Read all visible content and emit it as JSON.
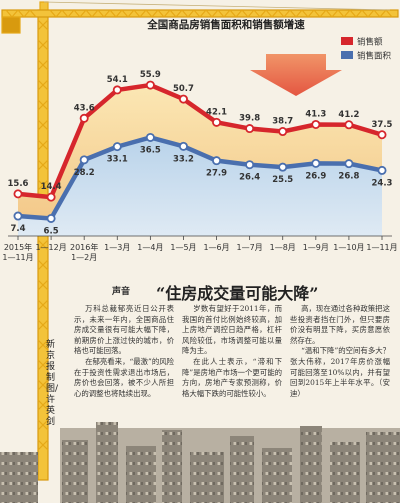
{
  "chart_data": {
    "type": "line",
    "title": "全国商品房销售面积和销售额增速",
    "categories": [
      "2015年 1—11月",
      "1—12月",
      "2016年 1—2月",
      "1—3月",
      "1—4月",
      "1—5月",
      "1—6月",
      "1—7月",
      "1—8月",
      "1—9月",
      "1—10月",
      "1—11月"
    ],
    "series": [
      {
        "name": "销售额",
        "color": "#d6262c",
        "values": [
          15.6,
          14.4,
          43.6,
          54.1,
          55.9,
          50.7,
          42.1,
          39.8,
          38.7,
          41.3,
          41.2,
          37.5
        ]
      },
      {
        "name": "销售面积",
        "color": "#4a6fae",
        "values": [
          7.4,
          6.5,
          28.2,
          33.1,
          36.5,
          33.2,
          27.9,
          26.4,
          25.5,
          26.9,
          26.8,
          24.3
        ]
      }
    ],
    "ylim": [
      0,
      60
    ],
    "grid": false,
    "legend_position": "top-right"
  },
  "article": {
    "tag": "声音",
    "headline": "“住房成交量可能大降”",
    "col1": [
      "万科总裁郁亮近日公开表示，未来一年内，全国商品住房成交量很有可能大幅下降，前期房价上涨过快的城市，价格也可能回落。",
      "在郁亮看来，“最激”的风险在于投资性需求退出市场后，房价也会回落，被不少人所担心的调整也将陆续出现。"
    ],
    "col2": [
      "岁数有望好于2011年，而我国的首付比例始终较高，加上房地产调控日趋严格，杠杆风险较低，市场调整可能以量降为主。",
      "在此人士表示，“滞和下降”是房地产市场一个更可能的方向，房地产专家预测称，价格大幅下跌的可能性较小。"
    ],
    "col3": [
      "高，现在通过各种政策把这些投资者挡在门外，但只要房价没有明显下降，买房意愿依然存在。",
      "“温和下降”的空间有多大？张大伟称，2017年房价涨幅可能回落至10%以内，并有望回到2015年上半年水平。（安迪）"
    ],
    "credit": "新京报制图/许英剑"
  }
}
